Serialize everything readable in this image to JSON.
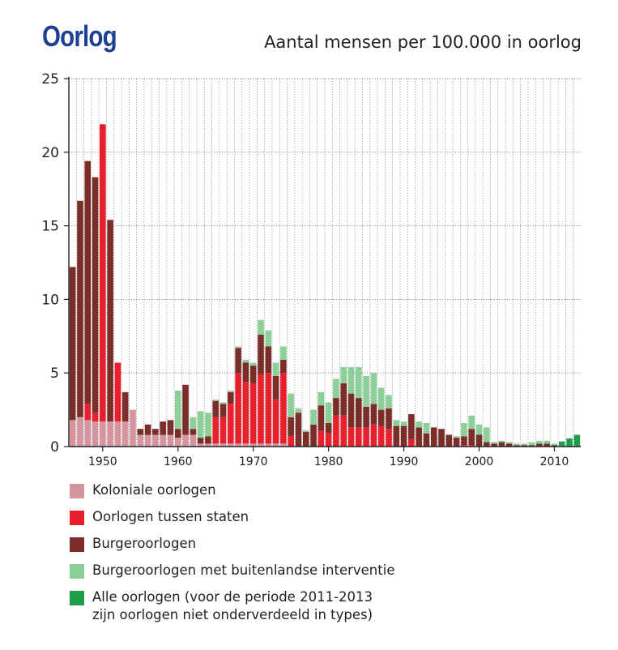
{
  "header": {
    "brand": "Oorlog",
    "title": "Aantal mensen per 100.000 in oorlog"
  },
  "colors": {
    "colonial": "#d4959f",
    "interstate": "#e8202e",
    "civil": "#7b2d2a",
    "internationalized": "#8ccf98",
    "all": "#1e9e4a",
    "grid": "#777777",
    "text": "#222222",
    "brand": "#1d3f94"
  },
  "legend": [
    {
      "key": "colonial",
      "label": "Koloniale oorlogen"
    },
    {
      "key": "interstate",
      "label": "Oorlogen tussen staten"
    },
    {
      "key": "civil",
      "label": "Burgeroorlogen"
    },
    {
      "key": "internationalized",
      "label": "Burgeroorlogen met buitenlandse interventie"
    },
    {
      "key": "all",
      "label": "Alle oorlogen (voor de periode 2011-2013",
      "label_line2": "zijn oorlogen niet onderverdeeld in types)"
    }
  ],
  "chart_data": {
    "type": "bar",
    "stacked": true,
    "title": "Aantal mensen per 100.000 in oorlog",
    "xlabel": "",
    "ylabel": "",
    "ylim": [
      0,
      25
    ],
    "yticks": [
      0,
      5,
      10,
      15,
      20,
      25
    ],
    "xticks": [
      1950,
      1960,
      1970,
      1980,
      1990,
      2000,
      2010
    ],
    "grid": true,
    "legend_position": "bottom",
    "x": [
      1946,
      1947,
      1948,
      1949,
      1950,
      1951,
      1952,
      1953,
      1954,
      1955,
      1956,
      1957,
      1958,
      1959,
      1960,
      1961,
      1962,
      1963,
      1964,
      1965,
      1966,
      1967,
      1968,
      1969,
      1970,
      1971,
      1972,
      1973,
      1974,
      1975,
      1976,
      1977,
      1978,
      1979,
      1980,
      1981,
      1982,
      1983,
      1984,
      1985,
      1986,
      1987,
      1988,
      1989,
      1990,
      1991,
      1992,
      1993,
      1994,
      1995,
      1996,
      1997,
      1998,
      1999,
      2000,
      2001,
      2002,
      2003,
      2004,
      2005,
      2006,
      2007,
      2008,
      2009,
      2010,
      2011,
      2012,
      2013
    ],
    "series": [
      {
        "key": "colonial",
        "name": "Koloniale oorlogen",
        "values": [
          1.8,
          2.0,
          1.8,
          1.7,
          1.7,
          1.7,
          1.7,
          1.7,
          2.5,
          0.8,
          0.8,
          0.8,
          0.8,
          0.8,
          0.6,
          0.8,
          0.8,
          0.2,
          0.2,
          0.2,
          0.2,
          0.2,
          0.2,
          0.2,
          0.2,
          0.2,
          0.2,
          0.2,
          0.2,
          0,
          0,
          0,
          0,
          0,
          0,
          0,
          0,
          0,
          0,
          0,
          0,
          0,
          0,
          0,
          0,
          0,
          0,
          0,
          0,
          0,
          0,
          0,
          0,
          0,
          0,
          0,
          0,
          0,
          0,
          0,
          0,
          0,
          0,
          0,
          0,
          0,
          0,
          0
        ]
      },
      {
        "key": "interstate",
        "name": "Oorlogen tussen staten",
        "values": [
          0,
          0,
          1.1,
          0.6,
          20.2,
          0,
          4.0,
          0,
          0,
          0,
          0,
          0,
          0,
          0,
          0,
          0,
          0,
          0,
          0,
          1.8,
          1.8,
          2.7,
          4.8,
          4.2,
          4.1,
          4.7,
          4.8,
          3.0,
          4.8,
          0.7,
          0,
          0,
          0,
          1.1,
          0.9,
          2.1,
          2.1,
          1.3,
          1.3,
          1.3,
          1.5,
          1.4,
          1.2,
          0,
          0,
          0.5,
          0,
          0,
          0,
          0,
          0,
          0,
          0.1,
          0.1,
          0,
          0,
          0,
          0,
          0,
          0,
          0,
          0,
          0,
          0,
          0,
          0,
          0,
          0
        ]
      },
      {
        "key": "civil",
        "name": "Burgeroorlogen",
        "values": [
          10.4,
          14.7,
          16.5,
          16.0,
          0,
          13.7,
          0,
          2.0,
          0,
          0.4,
          0.7,
          0.4,
          0.9,
          1.0,
          0.6,
          3.4,
          0.4,
          0.4,
          0.5,
          1.1,
          0.9,
          0.8,
          1.7,
          1.3,
          1.2,
          2.7,
          1.8,
          1.6,
          0.9,
          1.3,
          2.3,
          1.0,
          1.5,
          1.7,
          0.7,
          1.2,
          2.2,
          2.3,
          2.0,
          1.4,
          1.4,
          1.1,
          1.4,
          1.4,
          1.4,
          1.7,
          1.3,
          0.9,
          1.3,
          1.2,
          0.8,
          0.6,
          0.6,
          1.1,
          0.8,
          0.3,
          0.2,
          0.3,
          0.2,
          0.1,
          0.1,
          0.1,
          0.2,
          0.2,
          0.1,
          0,
          0,
          0
        ]
      },
      {
        "key": "internationalized",
        "name": "Burgeroorlogen met buitenlandse interventie",
        "values": [
          0,
          0,
          0,
          0,
          0,
          0,
          0,
          0,
          0,
          0,
          0,
          0,
          0,
          0,
          2.6,
          0,
          0.8,
          1.8,
          1.6,
          0.1,
          0.1,
          0.1,
          0.1,
          0.2,
          0.2,
          1.0,
          1.1,
          0.9,
          0.9,
          1.6,
          0.3,
          0.1,
          1.0,
          0.9,
          1.4,
          1.3,
          1.1,
          1.8,
          2.1,
          2.1,
          2.1,
          1.5,
          0.9,
          0.4,
          0.3,
          0,
          0.4,
          0.7,
          0,
          0,
          0,
          0.1,
          0.9,
          0.9,
          0.7,
          1.0,
          0.1,
          0.1,
          0.1,
          0.1,
          0.1,
          0.2,
          0.2,
          0.2,
          0.1,
          0,
          0,
          0
        ]
      },
      {
        "key": "all",
        "name": "Alle oorlogen (voor de periode 2011-2013 zijn oorlogen niet onderverdeeld in types)",
        "values": [
          0,
          0,
          0,
          0,
          0,
          0,
          0,
          0,
          0,
          0,
          0,
          0,
          0,
          0,
          0,
          0,
          0,
          0,
          0,
          0,
          0,
          0,
          0,
          0,
          0,
          0,
          0,
          0,
          0,
          0,
          0,
          0,
          0,
          0,
          0,
          0,
          0,
          0,
          0,
          0,
          0,
          0,
          0,
          0,
          0,
          0,
          0,
          0,
          0,
          0,
          0,
          0,
          0,
          0,
          0,
          0,
          0,
          0,
          0,
          0,
          0,
          0,
          0,
          0,
          0,
          0.35,
          0.55,
          0.8
        ]
      }
    ]
  }
}
